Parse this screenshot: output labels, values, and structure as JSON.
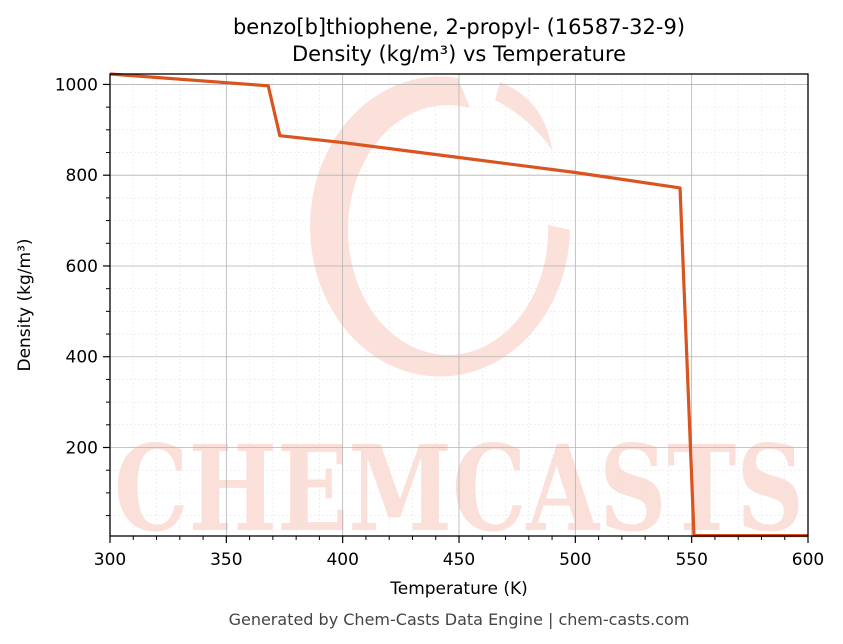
{
  "chart_data": {
    "type": "line",
    "title": "benzo[b]thiophene, 2-propyl- (16587-32-9)",
    "subtitle": "Density (kg/m³) vs Temperature",
    "xlabel": "Temperature (K)",
    "ylabel": "Density (kg/m³)",
    "xlim": [
      300,
      600
    ],
    "ylim": [
      5,
      1023
    ],
    "x_ticks": [
      300,
      350,
      400,
      450,
      500,
      550,
      600
    ],
    "y_ticks": [
      200,
      400,
      600,
      800,
      1000
    ],
    "grid": true,
    "series": [
      {
        "color": "#d9541e",
        "x": [
          300,
          368,
          373,
          400,
          450,
          500,
          545,
          551,
          600
        ],
        "y": [
          1023,
          997,
          887,
          872,
          839,
          806,
          772,
          6,
          6
        ]
      }
    ]
  },
  "watermark": {
    "text": "CHEMCASTS",
    "color": "#f9c8bd"
  },
  "footer": "Generated by Chem-Casts Data Engine | chem-casts.com"
}
